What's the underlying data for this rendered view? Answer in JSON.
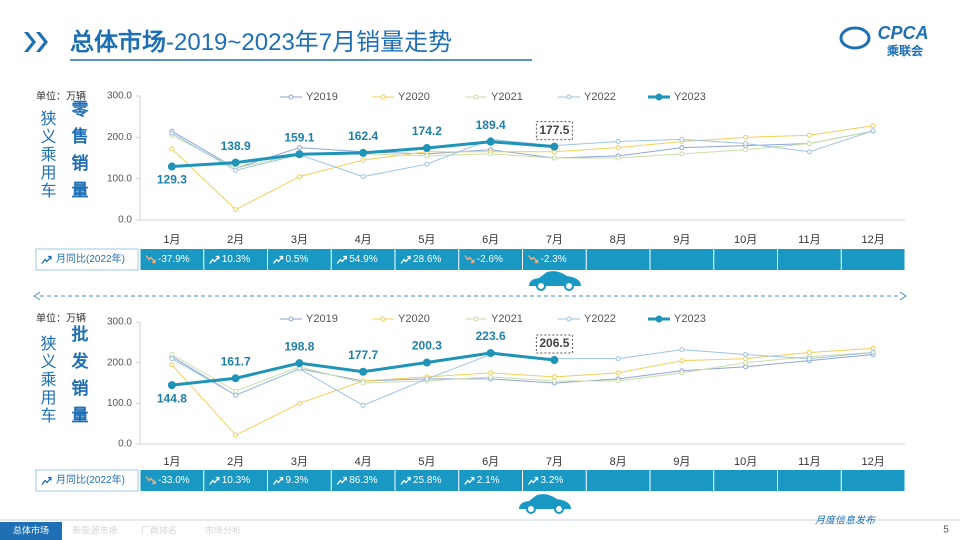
{
  "header": {
    "title_main": "总体市场",
    "title_rest": "-2019~2023年7月销量走势",
    "logo": "CPCA",
    "logo_sub": "乘联会"
  },
  "chart_data": [
    {
      "type": "line",
      "unit": "单位：万辆",
      "side_label": "狭义乘用车",
      "title": "零售销量",
      "categories": [
        "1月",
        "2月",
        "3月",
        "4月",
        "5月",
        "6月",
        "7月",
        "8月",
        "9月",
        "10月",
        "11月",
        "12月"
      ],
      "ylim": [
        0,
        300
      ],
      "yticks": [
        {
          "value": 0,
          "label": "0.0"
        },
        {
          "value": 100,
          "label": "100.0"
        },
        {
          "value": 200,
          "label": "200.0"
        },
        {
          "value": 300,
          "label": "300.0"
        }
      ],
      "series": [
        {
          "name": "Y2019",
          "color": "#8fa6d6",
          "values": [
            215,
            125,
            175,
            165,
            160,
            170,
            150,
            155,
            175,
            180,
            185,
            215
          ]
        },
        {
          "name": "Y2020",
          "color": "#f3cf5a",
          "values": [
            172,
            25,
            105,
            145,
            165,
            165,
            165,
            175,
            190,
            200,
            205,
            228
          ]
        },
        {
          "name": "Y2021",
          "color": "#c9dfa8",
          "values": [
            205,
            125,
            160,
            160,
            155,
            160,
            150,
            150,
            160,
            170,
            185,
            215
          ]
        },
        {
          "name": "Y2022",
          "color": "#9ec4e4",
          "values": [
            210,
            120,
            158,
            105,
            135,
            195,
            180,
            190,
            195,
            185,
            165,
            216
          ]
        },
        {
          "name": "Y2023",
          "color": "#1f93b8",
          "values": [
            129.3,
            138.9,
            159.1,
            162.4,
            174.2,
            189.4,
            177.5,
            null,
            null,
            null,
            null,
            null
          ]
        }
      ],
      "yoy_label": "月同比(2022年)",
      "yoy": [
        "-37.9%",
        "10.3%",
        "0.5%",
        "54.9%",
        "28.6%",
        "-2.6%",
        "-2.3%"
      ]
    },
    {
      "type": "line",
      "unit": "单位：万辆",
      "side_label": "狭义乘用车",
      "title": "批发销量",
      "categories": [
        "1月",
        "2月",
        "3月",
        "4月",
        "5月",
        "6月",
        "7月",
        "8月",
        "9月",
        "10月",
        "11月",
        "12月"
      ],
      "ylim": [
        0,
        300
      ],
      "yticks": [
        {
          "value": 0,
          "label": "0.0"
        },
        {
          "value": 100,
          "label": "100.0"
        },
        {
          "value": 200,
          "label": "200.0"
        },
        {
          "value": 300,
          "label": "300.0"
        }
      ],
      "series": [
        {
          "name": "Y2019",
          "color": "#8fa6d6",
          "values": [
            215,
            120,
            185,
            155,
            160,
            160,
            150,
            160,
            180,
            190,
            205,
            220
          ]
        },
        {
          "name": "Y2020",
          "color": "#f3cf5a",
          "values": [
            195,
            22,
            100,
            155,
            165,
            175,
            165,
            175,
            205,
            210,
            225,
            235
          ]
        },
        {
          "name": "Y2021",
          "color": "#c9dfa8",
          "values": [
            220,
            130,
            190,
            150,
            155,
            165,
            155,
            155,
            175,
            200,
            215,
            225
          ]
        },
        {
          "name": "Y2022",
          "color": "#9ec4e4",
          "values": [
            210,
            120,
            185,
            95,
            160,
            220,
            210,
            210,
            232,
            220,
            210,
            225
          ]
        },
        {
          "name": "Y2023",
          "color": "#1f93b8",
          "values": [
            144.8,
            161.7,
            198.8,
            177.7,
            200.3,
            223.6,
            206.5,
            null,
            null,
            null,
            null,
            null
          ]
        }
      ],
      "yoy_label": "月同比(2022年)",
      "yoy": [
        "-33.0%",
        "10.3%",
        "9.3%",
        "86.3%",
        "25.8%",
        "2.1%",
        "3.2%"
      ]
    }
  ],
  "footer": {
    "tabs": [
      "总体市场",
      "新能源市场",
      "厂商排名",
      "市场分析"
    ],
    "note": "月度信息发布",
    "page": "5"
  }
}
